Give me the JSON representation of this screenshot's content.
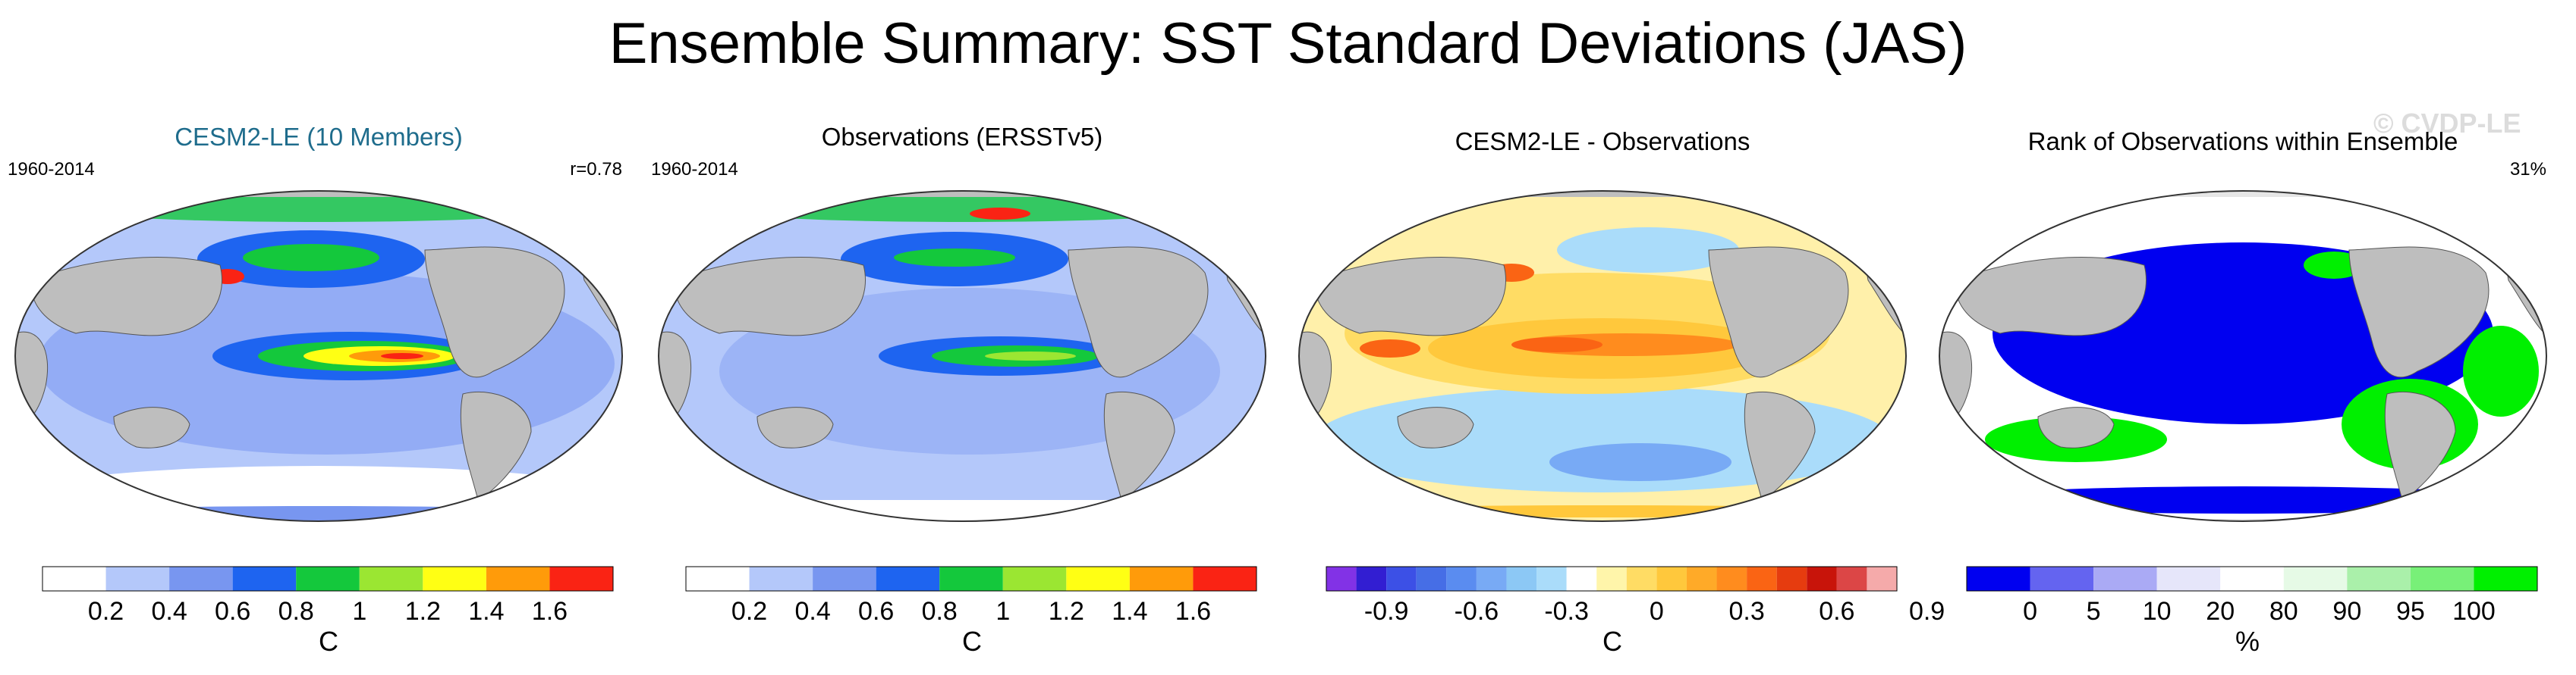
{
  "title": "Ensemble Summary: SST Standard Deviations (JAS)",
  "watermark": "© CVDP-LE",
  "panels": [
    {
      "title": "CESM2-LE (10 Members)",
      "period": "1960-2014",
      "stat": "r=0.78"
    },
    {
      "title": "Observations (ERSSTv5)",
      "period": "1960-2014",
      "stat": ""
    },
    {
      "title": "CESM2-LE - Observations",
      "period": "",
      "stat": ""
    },
    {
      "title": "Rank of Observations within Ensemble",
      "period": "",
      "stat": "31%"
    }
  ],
  "colorbars": {
    "sd": {
      "unit": "C",
      "colors": [
        "#ffffff",
        "#b4c8fa",
        "#7896f0",
        "#1e64f0",
        "#14c83c",
        "#9be632",
        "#ffff14",
        "#ff9b0a",
        "#fa2314"
      ],
      "labels": [
        "0.2",
        "0.4",
        "0.6",
        "0.8",
        "1",
        "1.2",
        "1.4",
        "1.6"
      ]
    },
    "diff": {
      "unit": "C",
      "colors": [
        "#8232e6",
        "#321ed2",
        "#3c50e6",
        "#466ee6",
        "#5a8cf0",
        "#78aaf5",
        "#8cc8f5",
        "#aadcfa",
        "#ffffff",
        "#fff5aa",
        "#ffdc64",
        "#ffc83c",
        "#ffaa28",
        "#ff8c1e",
        "#fa6414",
        "#e63c0f",
        "#c8140a",
        "#dc4646",
        "#f5aaaa"
      ],
      "labels": [
        "-0.9",
        "-0.6",
        "-0.3",
        "0",
        "0.3",
        "0.6",
        "0.9"
      ]
    },
    "rank": {
      "unit": "%",
      "colors": [
        "#0000f0",
        "#6464f0",
        "#aaaaf5",
        "#e6e6fa",
        "#ffffff",
        "#e6fae6",
        "#aaf0aa",
        "#78f078",
        "#00f000"
      ],
      "labels": [
        "0",
        "5",
        "10",
        "20",
        "80",
        "90",
        "95",
        "100"
      ]
    }
  },
  "map_colors": {
    "land": "#bebebe",
    "coast": "#555555",
    "ocean1": "#b4c8fa",
    "ocean2": "#7896f0",
    "ocean3": "#1e64f0",
    "green": "#14c83c",
    "yellow": "#ffff14",
    "orange": "#ff9b0a",
    "red": "#fa2314",
    "diff_bg": "#fff0aa",
    "diff_warm": "#ffc83c",
    "diff_hot": "#fa6414",
    "diff_cool": "#aadcfa",
    "diff_cold": "#78aaf5",
    "rank_blue": "#0000f0",
    "rank_green": "#00f000",
    "rank_bg": "#ffffff"
  }
}
